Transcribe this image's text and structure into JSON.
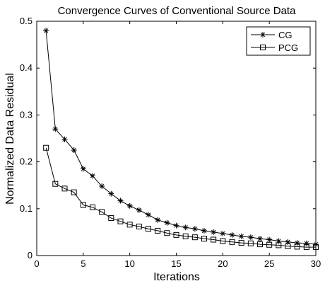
{
  "chart_data": {
    "type": "line",
    "title": "Convergence Curves of Conventional Source Data",
    "xlabel": "Iterations",
    "ylabel": "Normalized Data Residual",
    "xlim": [
      0,
      30
    ],
    "ylim": [
      0,
      0.5
    ],
    "x_ticks": [
      "0",
      "5",
      "10",
      "15",
      "20",
      "25",
      "30"
    ],
    "y_ticks": [
      "0",
      "0.1",
      "0.2",
      "0.3",
      "0.4",
      "0.5"
    ],
    "grid": false,
    "legend_position": "top-right",
    "series": [
      {
        "name": "CG",
        "marker": "asterisk",
        "color": "#000000",
        "x": [
          1,
          2,
          3,
          4,
          5,
          6,
          7,
          8,
          9,
          10,
          11,
          12,
          13,
          14,
          15,
          16,
          17,
          18,
          19,
          20,
          21,
          22,
          23,
          24,
          25,
          26,
          27,
          28,
          29,
          30
        ],
        "values": [
          0.48,
          0.27,
          0.248,
          0.225,
          0.185,
          0.17,
          0.148,
          0.132,
          0.117,
          0.106,
          0.097,
          0.087,
          0.076,
          0.07,
          0.064,
          0.06,
          0.057,
          0.053,
          0.05,
          0.047,
          0.044,
          0.041,
          0.039,
          0.036,
          0.034,
          0.031,
          0.029,
          0.027,
          0.026,
          0.024
        ]
      },
      {
        "name": "PCG",
        "marker": "square",
        "color": "#000000",
        "x": [
          1,
          2,
          3,
          4,
          5,
          6,
          7,
          8,
          9,
          10,
          11,
          12,
          13,
          14,
          15,
          16,
          17,
          18,
          19,
          20,
          21,
          22,
          23,
          24,
          25,
          26,
          27,
          28,
          29,
          30
        ],
        "values": [
          0.23,
          0.153,
          0.143,
          0.135,
          0.108,
          0.103,
          0.093,
          0.08,
          0.073,
          0.066,
          0.062,
          0.057,
          0.053,
          0.048,
          0.044,
          0.041,
          0.039,
          0.036,
          0.034,
          0.031,
          0.029,
          0.027,
          0.026,
          0.024,
          0.023,
          0.022,
          0.02,
          0.019,
          0.018,
          0.018
        ]
      }
    ]
  }
}
